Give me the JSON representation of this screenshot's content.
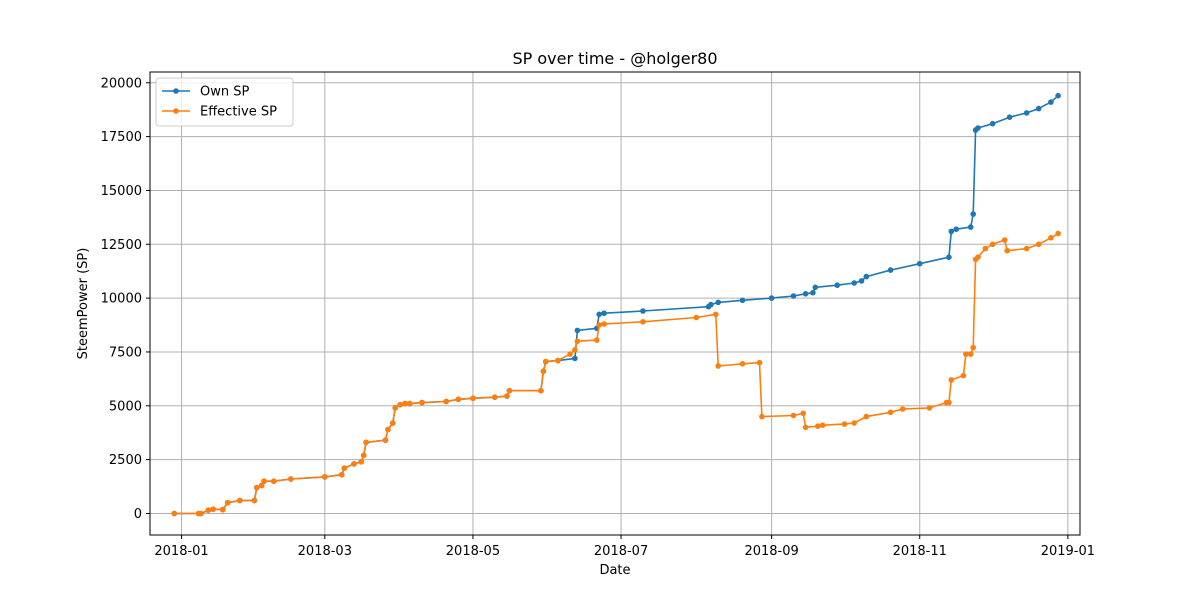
{
  "chart_data": {
    "type": "line",
    "title": "SP over time - @holger80",
    "xlabel": "Date",
    "ylabel": "SteemPower (SP)",
    "xlim": [
      "2017-12-19",
      "2019-01-06"
    ],
    "ylim": [
      -1000,
      20500
    ],
    "grid": true,
    "legend_position": "top-left",
    "x_ticks": [
      "2018-01-01",
      "2018-03-01",
      "2018-05-01",
      "2018-07-01",
      "2018-09-01",
      "2018-11-01",
      "2019-01-01"
    ],
    "x_tick_labels": [
      "2018-01",
      "2018-03",
      "2018-05",
      "2018-07",
      "2018-09",
      "2018-11",
      "2019-01"
    ],
    "y_ticks": [
      0,
      2500,
      5000,
      7500,
      10000,
      12500,
      15000,
      17500,
      20000
    ],
    "y_tick_labels": [
      "0",
      "2500",
      "5000",
      "7500",
      "10000",
      "12500",
      "15000",
      "17500",
      "20000"
    ],
    "series": [
      {
        "name": "Own SP",
        "color": "#1f77b4",
        "x": [
          "2017-12-29",
          "2018-01-08",
          "2018-01-09",
          "2018-01-12",
          "2018-01-14",
          "2018-01-18",
          "2018-01-20",
          "2018-01-25",
          "2018-01-31",
          "2018-02-01",
          "2018-02-03",
          "2018-02-04",
          "2018-02-08",
          "2018-02-15",
          "2018-03-01",
          "2018-03-08",
          "2018-03-09",
          "2018-03-13",
          "2018-03-16",
          "2018-03-17",
          "2018-03-18",
          "2018-03-26",
          "2018-03-27",
          "2018-03-29",
          "2018-03-30",
          "2018-04-01",
          "2018-04-03",
          "2018-04-05",
          "2018-04-10",
          "2018-04-20",
          "2018-04-25",
          "2018-05-01",
          "2018-05-10",
          "2018-05-15",
          "2018-05-16",
          "2018-05-29",
          "2018-05-30",
          "2018-05-31",
          "2018-06-05",
          "2018-06-12",
          "2018-06-13",
          "2018-06-21",
          "2018-06-22",
          "2018-06-24",
          "2018-07-10",
          "2018-08-06",
          "2018-08-07",
          "2018-08-10",
          "2018-08-20",
          "2018-09-01",
          "2018-09-10",
          "2018-09-15",
          "2018-09-18",
          "2018-09-19",
          "2018-09-28",
          "2018-10-05",
          "2018-10-08",
          "2018-10-10",
          "2018-10-20",
          "2018-11-01",
          "2018-11-13",
          "2018-11-14",
          "2018-11-16",
          "2018-11-22",
          "2018-11-23",
          "2018-11-24",
          "2018-11-25",
          "2018-12-01",
          "2018-12-08",
          "2018-12-15",
          "2018-12-20",
          "2018-12-25",
          "2018-12-28"
        ],
        "y": [
          0,
          0,
          0,
          150,
          200,
          180,
          500,
          600,
          600,
          1200,
          1300,
          1500,
          1500,
          1600,
          1700,
          1800,
          2100,
          2300,
          2400,
          2700,
          3300,
          3400,
          3900,
          4200,
          4900,
          5050,
          5100,
          5100,
          5150,
          5200,
          5300,
          5350,
          5400,
          5450,
          5700,
          5700,
          6600,
          7050,
          7100,
          7200,
          8500,
          8600,
          9250,
          9300,
          9400,
          9600,
          9700,
          9800,
          9900,
          10000,
          10100,
          10200,
          10250,
          10500,
          10600,
          10700,
          10800,
          11000,
          11300,
          11600,
          11900,
          13100,
          13200,
          13300,
          13900,
          17800,
          17900,
          18100,
          18400,
          18600,
          18800,
          19100,
          19400
        ]
      },
      {
        "name": "Effective SP",
        "color": "#ff7f0e",
        "x": [
          "2017-12-29",
          "2018-01-08",
          "2018-01-09",
          "2018-01-12",
          "2018-01-14",
          "2018-01-18",
          "2018-01-20",
          "2018-01-25",
          "2018-01-31",
          "2018-02-01",
          "2018-02-03",
          "2018-02-04",
          "2018-02-08",
          "2018-02-15",
          "2018-03-01",
          "2018-03-08",
          "2018-03-09",
          "2018-03-13",
          "2018-03-16",
          "2018-03-17",
          "2018-03-18",
          "2018-03-26",
          "2018-03-27",
          "2018-03-29",
          "2018-03-30",
          "2018-04-01",
          "2018-04-03",
          "2018-04-05",
          "2018-04-10",
          "2018-04-20",
          "2018-04-25",
          "2018-05-01",
          "2018-05-10",
          "2018-05-15",
          "2018-05-16",
          "2018-05-29",
          "2018-05-30",
          "2018-05-31",
          "2018-06-05",
          "2018-06-10",
          "2018-06-12",
          "2018-06-13",
          "2018-06-21",
          "2018-06-22",
          "2018-06-24",
          "2018-07-10",
          "2018-08-01",
          "2018-08-09",
          "2018-08-10",
          "2018-08-20",
          "2018-08-27",
          "2018-08-28",
          "2018-09-10",
          "2018-09-14",
          "2018-09-15",
          "2018-09-20",
          "2018-09-22",
          "2018-10-01",
          "2018-10-05",
          "2018-10-10",
          "2018-10-20",
          "2018-10-25",
          "2018-11-05",
          "2018-11-12",
          "2018-11-13",
          "2018-11-14",
          "2018-11-19",
          "2018-11-20",
          "2018-11-22",
          "2018-11-23",
          "2018-11-24",
          "2018-11-25",
          "2018-11-28",
          "2018-12-01",
          "2018-12-06",
          "2018-12-07",
          "2018-12-15",
          "2018-12-20",
          "2018-12-25",
          "2018-12-28"
        ],
        "y": [
          0,
          0,
          0,
          150,
          200,
          180,
          500,
          600,
          600,
          1200,
          1300,
          1500,
          1500,
          1600,
          1700,
          1800,
          2100,
          2300,
          2400,
          2700,
          3300,
          3400,
          3900,
          4200,
          4900,
          5050,
          5100,
          5100,
          5150,
          5200,
          5300,
          5350,
          5400,
          5450,
          5700,
          5700,
          6600,
          7050,
          7100,
          7400,
          7600,
          8000,
          8050,
          8750,
          8800,
          8900,
          9100,
          9250,
          6850,
          6950,
          7000,
          4500,
          4550,
          4650,
          4000,
          4050,
          4100,
          4150,
          4200,
          4500,
          4700,
          4850,
          4900,
          5150,
          5150,
          6200,
          6400,
          7400,
          7400,
          7700,
          11800,
          11900,
          12300,
          12500,
          12700,
          12200,
          12300,
          12500,
          12800,
          13000
        ]
      }
    ]
  }
}
